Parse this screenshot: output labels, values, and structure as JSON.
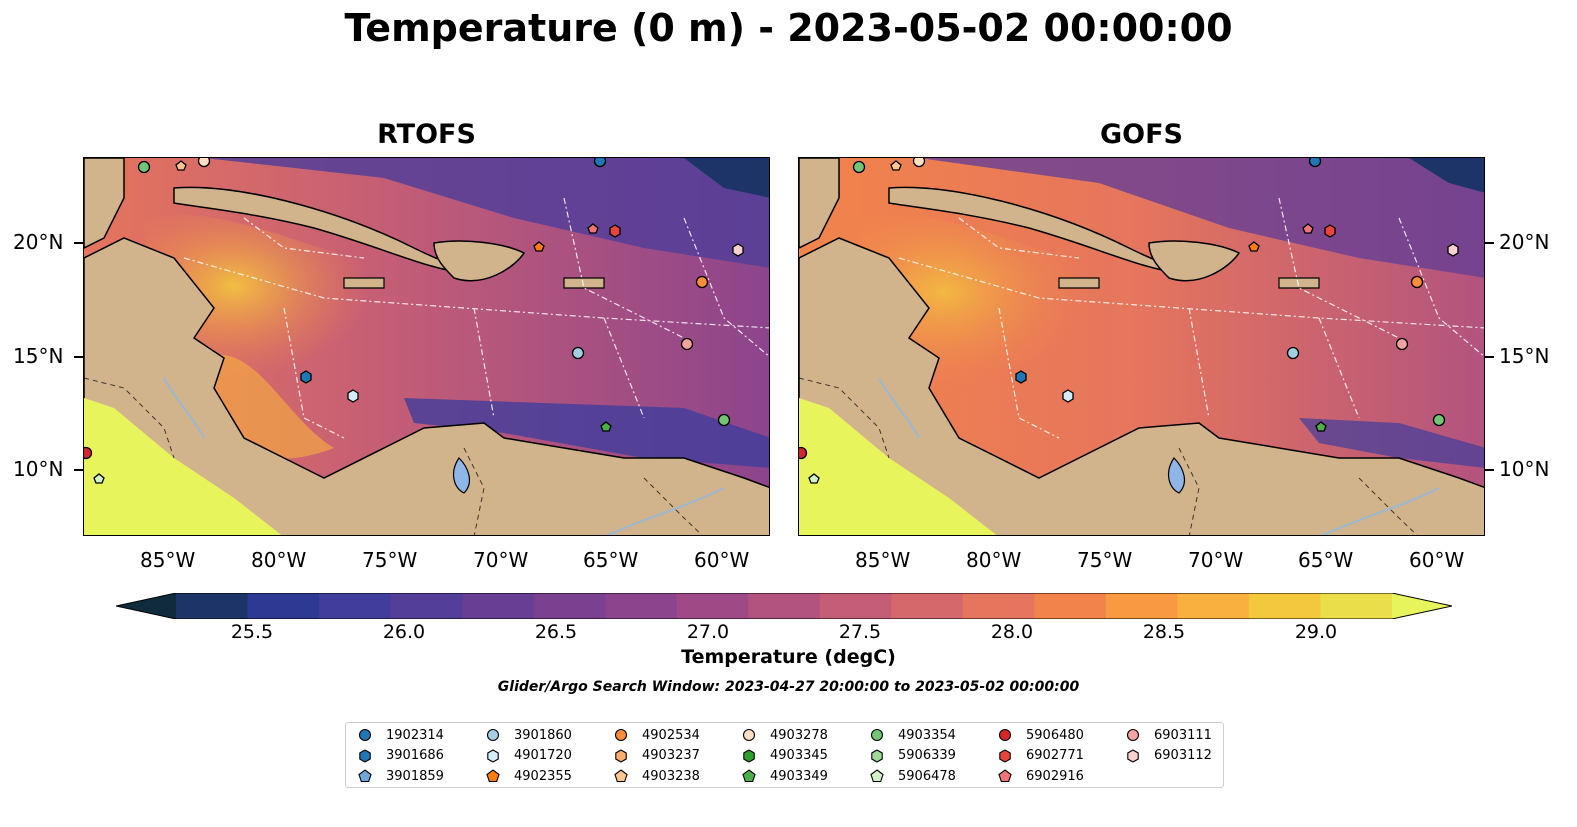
{
  "title": "Temperature (0 m) - 2023-05-02 00:00:00",
  "panels": [
    {
      "title": "RTOFS"
    },
    {
      "title": "GOFS"
    }
  ],
  "latitude_labels": [
    "20°N",
    "15°N",
    "10°N"
  ],
  "longitude_labels": [
    "85°W",
    "80°W",
    "75°W",
    "70°W",
    "65°W",
    "60°W"
  ],
  "colorbar": {
    "label": "Temperature (degC)",
    "ticks": [
      "25.5",
      "26.0",
      "26.5",
      "27.0",
      "27.5",
      "28.0",
      "28.5",
      "29.0"
    ],
    "range": [
      25.25,
      29.25
    ],
    "step": 0.25,
    "colors": [
      "#0f2b3c",
      "#1c3468",
      "#2d3a94",
      "#403d9c",
      "#533e99",
      "#663f95",
      "#794190",
      "#8c448c",
      "#9f4a87",
      "#b2537f",
      "#c45d76",
      "#d5686b",
      "#e5755d",
      "#f2844b",
      "#f99942",
      "#f9b03e",
      "#f4c83d",
      "#eadf4b",
      "#e8f45b"
    ]
  },
  "subtitle": "Glider/Argo Search Window: 2023-04-27 20:00:00 to 2023-05-02 00:00:00",
  "legend": [
    {
      "id": "1902314",
      "marker": "circle",
      "color": "#1f77b4"
    },
    {
      "id": "3901686",
      "marker": "hexagon",
      "color": "#1f77b4"
    },
    {
      "id": "3901859",
      "marker": "pentagon",
      "color": "#6fa7dc"
    },
    {
      "id": "3901860",
      "marker": "circle",
      "color": "#a6cee3"
    },
    {
      "id": "4901720",
      "marker": "hexagon",
      "color": "#d3ecf8"
    },
    {
      "id": "4902355",
      "marker": "pentagon",
      "color": "#ff7f0e"
    },
    {
      "id": "4902534",
      "marker": "circle",
      "color": "#fd8d3c"
    },
    {
      "id": "4903237",
      "marker": "hexagon",
      "color": "#fdae6b"
    },
    {
      "id": "4903238",
      "marker": "pentagon",
      "color": "#fdc68f"
    },
    {
      "id": "4903278",
      "marker": "circle",
      "color": "#fde0c5"
    },
    {
      "id": "4903345",
      "marker": "hexagon",
      "color": "#2ca02c"
    },
    {
      "id": "4903349",
      "marker": "pentagon",
      "color": "#4daf4a"
    },
    {
      "id": "4903354",
      "marker": "circle",
      "color": "#74c476"
    },
    {
      "id": "5906339",
      "marker": "hexagon",
      "color": "#a1d99b"
    },
    {
      "id": "5906478",
      "marker": "pentagon",
      "color": "#d4f2c8"
    },
    {
      "id": "5906480",
      "marker": "circle",
      "color": "#d62728"
    },
    {
      "id": "6902771",
      "marker": "hexagon",
      "color": "#e8453c"
    },
    {
      "id": "6902916",
      "marker": "pentagon",
      "color": "#f07478"
    },
    {
      "id": "6903111",
      "marker": "circle",
      "color": "#f4a3a3"
    },
    {
      "id": "6903112",
      "marker": "hexagon",
      "color": "#fbd0d0"
    }
  ],
  "map_colors": {
    "land": "#d2b48c",
    "lake": "#8fb6e6",
    "river": "#9bb8d3",
    "coast": "#000000"
  }
}
